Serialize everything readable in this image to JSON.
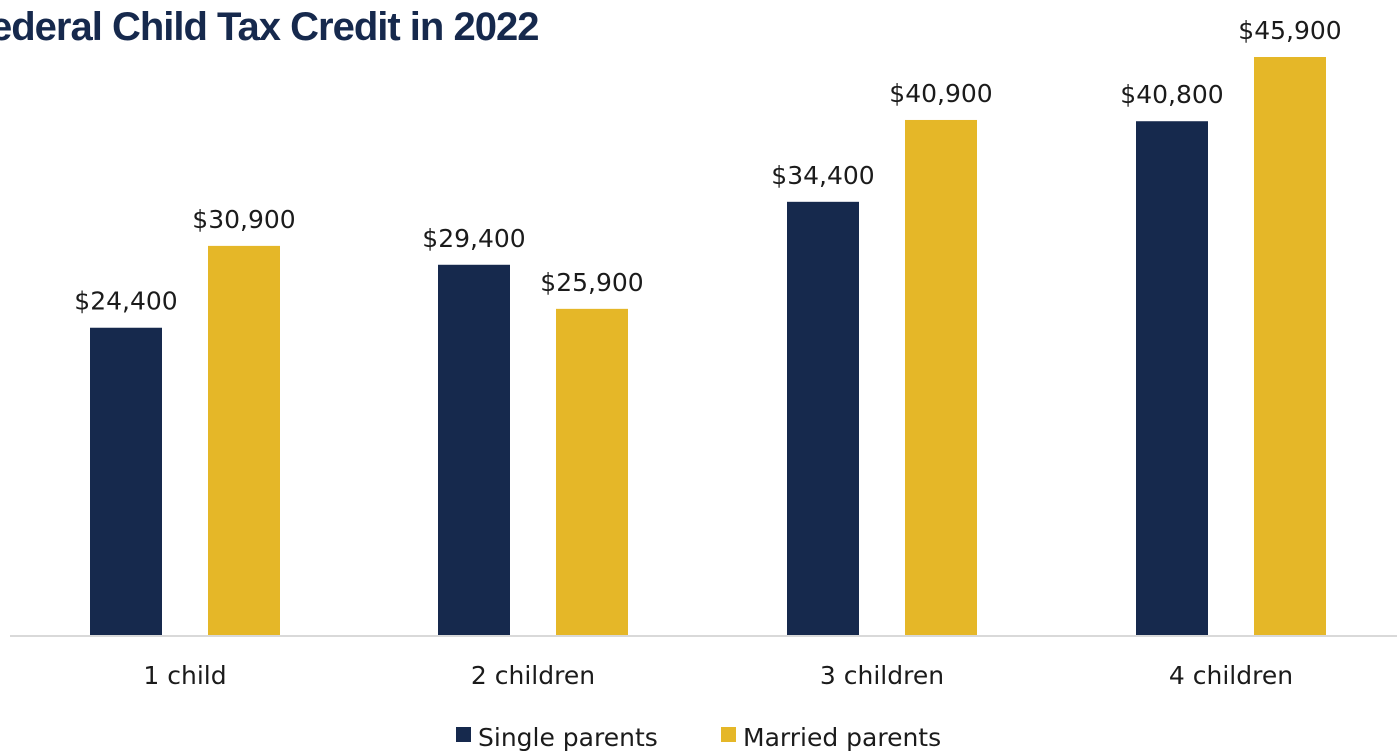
{
  "title": "ederal Child Tax Credit in 2022",
  "colors": {
    "single": "#16294d",
    "married": "#e5b728",
    "axis": "#d9d9d9",
    "title": "#16294d"
  },
  "chart_data": {
    "type": "bar",
    "title": "ederal Child Tax Credit in 2022",
    "categories": [
      "1 child",
      "2 children",
      "3 children",
      "4 children"
    ],
    "series": [
      {
        "name": "Single parents",
        "color": "#16294d",
        "values": [
          24400,
          29400,
          34400,
          40800
        ],
        "labels": [
          "$24,400",
          "$29,400",
          "$34,400",
          "$40,800"
        ]
      },
      {
        "name": "Married parents",
        "color": "#e5b728",
        "values": [
          30900,
          25900,
          40900,
          45900
        ],
        "labels": [
          "$30,900",
          "$25,900",
          "$40,900",
          "$45,900"
        ]
      }
    ],
    "ylim": [
      0,
      50000
    ],
    "grid": false,
    "legend": "bottom-center"
  }
}
